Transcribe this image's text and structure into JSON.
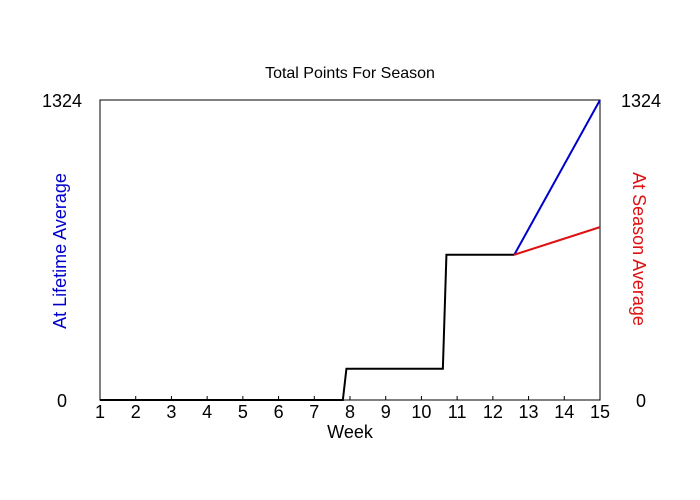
{
  "chart_data": {
    "type": "line",
    "title": "Total Points For Season",
    "xlabel": "Week",
    "ylabel_left": "At Lifetime Average",
    "ylabel_right": "At Season Average",
    "x_ticks": [
      "1",
      "2",
      "3",
      "4",
      "5",
      "6",
      "7",
      "8",
      "9",
      "10",
      "11",
      "12",
      "13",
      "14",
      "15"
    ],
    "y_left_ticks": [
      "0",
      "1324"
    ],
    "y_right_ticks": [
      "0",
      "1324"
    ],
    "xlim": [
      1,
      15
    ],
    "ylim": [
      0,
      1324
    ],
    "grid": false,
    "series": [
      {
        "color": "#000000",
        "points": [
          [
            1,
            0
          ],
          [
            7.8,
            0
          ],
          [
            7.9,
            138
          ],
          [
            10.6,
            138
          ],
          [
            10.7,
            641
          ],
          [
            12.6,
            641
          ]
        ]
      },
      {
        "name": "At Lifetime Average",
        "color": "#0000cc",
        "points": [
          [
            12.6,
            641
          ],
          [
            15,
            1324
          ]
        ]
      },
      {
        "name": "At Season Average",
        "color": "#dd1111",
        "points": [
          [
            12.6,
            641
          ],
          [
            15,
            763
          ]
        ]
      }
    ]
  }
}
